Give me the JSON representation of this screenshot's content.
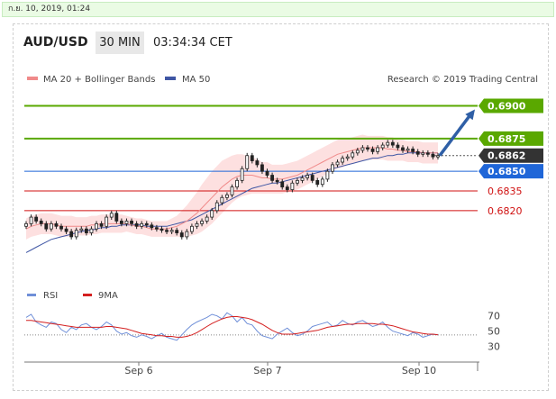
{
  "header": {
    "date": "ก.ย. 10, 2019, 01:24",
    "pair": "AUD/USD",
    "timeframe": "30 MIN",
    "time": "03:34:34 CET"
  },
  "legend": {
    "ma20": "MA 20 + Bollinger Bands",
    "ma50": "MA 50",
    "credit": "Research © 2019 Trading Central",
    "rsi": "RSI",
    "ma9": "9MA"
  },
  "colors": {
    "green": "#5aa800",
    "blue": "#1f66d8",
    "red": "#d01010",
    "current": "#333333",
    "ma50": "#3f56a4",
    "ma20": "#f08a8a",
    "band": "#fde0e0",
    "arrow": "#2f5fa6",
    "rsi": "#6f8fd8",
    "ma9": "#d42020"
  },
  "chart_data": [
    {
      "type": "line",
      "title": "",
      "ylim": [
        0.678,
        0.6912
      ],
      "x_ticks": [
        "Sep 6",
        "Sep 7",
        "Sep 10"
      ],
      "levels": [
        {
          "value": 0.69,
          "label": "0.6900",
          "kind": "resistance",
          "color": "#5aa800"
        },
        {
          "value": 0.6875,
          "label": "0.6875",
          "kind": "resistance",
          "color": "#5aa800"
        },
        {
          "value": 0.6862,
          "label": "0.6862",
          "kind": "current",
          "color": "#333333"
        },
        {
          "value": 0.685,
          "label": "0.6850",
          "kind": "pivot",
          "color": "#1f66d8"
        },
        {
          "value": 0.6835,
          "label": "0.6835",
          "kind": "support",
          "color": "#d01010"
        },
        {
          "value": 0.682,
          "label": "0.6820",
          "kind": "support",
          "color": "#d01010"
        }
      ],
      "close": [
        0.681,
        0.6815,
        0.6812,
        0.681,
        0.6806,
        0.681,
        0.6808,
        0.6806,
        0.6804,
        0.68,
        0.6805,
        0.6806,
        0.6803,
        0.6806,
        0.681,
        0.6808,
        0.6815,
        0.6818,
        0.6812,
        0.681,
        0.6812,
        0.681,
        0.6808,
        0.681,
        0.6809,
        0.6807,
        0.6806,
        0.6805,
        0.6804,
        0.6805,
        0.6803,
        0.68,
        0.6804,
        0.6808,
        0.681,
        0.6812,
        0.6815,
        0.682,
        0.6826,
        0.683,
        0.6832,
        0.6838,
        0.6843,
        0.6852,
        0.6862,
        0.6858,
        0.6855,
        0.685,
        0.6847,
        0.6843,
        0.6842,
        0.6838,
        0.6836,
        0.6841,
        0.6843,
        0.6845,
        0.6847,
        0.6843,
        0.684,
        0.6844,
        0.685,
        0.6855,
        0.6857,
        0.686,
        0.6861,
        0.6864,
        0.6866,
        0.6868,
        0.6867,
        0.6865,
        0.6868,
        0.687,
        0.6872,
        0.687,
        0.6868,
        0.6866,
        0.6867,
        0.6865,
        0.6863,
        0.6864,
        0.6863,
        0.6861,
        0.6862
      ],
      "ma50": [
        0.6788,
        0.679,
        0.6792,
        0.6794,
        0.6796,
        0.6798,
        0.6799,
        0.68,
        0.6801,
        0.6802,
        0.6803,
        0.6804,
        0.6805,
        0.6805,
        0.6806,
        0.6807,
        0.6807,
        0.6808,
        0.6808,
        0.6809,
        0.6809,
        0.6809,
        0.6809,
        0.6809,
        0.6808,
        0.6808,
        0.6808,
        0.6808,
        0.6808,
        0.6809,
        0.681,
        0.6811,
        0.6812,
        0.6813,
        0.6815,
        0.6817,
        0.6819,
        0.6821,
        0.6823,
        0.6825,
        0.6827,
        0.6829,
        0.6831,
        0.6833,
        0.6835,
        0.6837,
        0.6838,
        0.6839,
        0.684,
        0.6841,
        0.6841,
        0.6842,
        0.6843,
        0.6844,
        0.6845,
        0.6846,
        0.6847,
        0.6848,
        0.6849,
        0.685,
        0.6851,
        0.6852,
        0.6853,
        0.6854,
        0.6855,
        0.6856,
        0.6857,
        0.6858,
        0.6859,
        0.686,
        0.686,
        0.6861,
        0.6862,
        0.6862,
        0.6863,
        0.6863,
        0.6864,
        0.6864,
        0.6864,
        0.6864,
        0.6864,
        0.6864,
        0.6864
      ],
      "ma20": [
        0.6806,
        0.6808,
        0.6809,
        0.681,
        0.681,
        0.681,
        0.6809,
        0.6808,
        0.6808,
        0.6808,
        0.6808,
        0.6808,
        0.6808,
        0.6809,
        0.6809,
        0.681,
        0.681,
        0.681,
        0.681,
        0.681,
        0.681,
        0.6809,
        0.6808,
        0.6808,
        0.6807,
        0.6806,
        0.6806,
        0.6806,
        0.6806,
        0.6807,
        0.6808,
        0.681,
        0.6812,
        0.6815,
        0.6818,
        0.6822,
        0.6826,
        0.683,
        0.6834,
        0.6838,
        0.6841,
        0.6844,
        0.6846,
        0.6847,
        0.6847,
        0.6847,
        0.6846,
        0.6845,
        0.6845,
        0.6844,
        0.6844,
        0.6844,
        0.6845,
        0.6846,
        0.6847,
        0.6849,
        0.6851,
        0.6853,
        0.6855,
        0.6857,
        0.6859,
        0.6861,
        0.6863,
        0.6864,
        0.6865,
        0.6866,
        0.6867,
        0.6868,
        0.6868,
        0.6868,
        0.6868,
        0.6868,
        0.6867,
        0.6867,
        0.6866,
        0.6866,
        0.6865,
        0.6865,
        0.6865,
        0.6864,
        0.6864,
        0.6864,
        0.6864
      ],
      "band_width": [
        0.0008,
        0.0008,
        0.0008,
        0.0008,
        0.0008,
        0.0008,
        0.0008,
        0.0008,
        0.0008,
        0.0008,
        0.0007,
        0.0007,
        0.0007,
        0.0007,
        0.0007,
        0.0007,
        0.0007,
        0.0007,
        0.0007,
        0.0007,
        0.0006,
        0.0006,
        0.0006,
        0.0006,
        0.0006,
        0.0006,
        0.0006,
        0.0006,
        0.0006,
        0.0007,
        0.0008,
        0.001,
        0.0012,
        0.0014,
        0.0016,
        0.0018,
        0.0019,
        0.002,
        0.002,
        0.002,
        0.0019,
        0.0018,
        0.0017,
        0.0016,
        0.0015,
        0.0014,
        0.0013,
        0.0012,
        0.0012,
        0.0011,
        0.0011,
        0.0011,
        0.0011,
        0.0011,
        0.0011,
        0.0011,
        0.0011,
        0.0011,
        0.0011,
        0.0011,
        0.0011,
        0.0011,
        0.0011,
        0.0011,
        0.001,
        0.001,
        0.001,
        0.001,
        0.0009,
        0.0009,
        0.0009,
        0.0009,
        0.0009,
        0.0009,
        0.0008,
        0.0008,
        0.0008,
        0.0008,
        0.0008,
        0.0008,
        0.0008,
        0.0008,
        0.0008
      ]
    },
    {
      "type": "line",
      "title": "",
      "ylim": [
        20,
        85
      ],
      "y_ticks": [
        70,
        50,
        30
      ],
      "rsi": [
        68,
        72,
        62,
        58,
        55,
        62,
        60,
        52,
        48,
        55,
        52,
        58,
        60,
        55,
        52,
        56,
        62,
        58,
        50,
        46,
        48,
        44,
        42,
        45,
        43,
        40,
        44,
        47,
        42,
        40,
        38,
        45,
        52,
        58,
        62,
        65,
        68,
        72,
        70,
        66,
        74,
        70,
        62,
        68,
        60,
        58,
        50,
        44,
        42,
        40,
        46,
        50,
        54,
        48,
        44,
        46,
        50,
        56,
        58,
        60,
        62,
        56,
        58,
        64,
        60,
        58,
        62,
        64,
        60,
        56,
        58,
        62,
        55,
        50,
        48,
        46,
        44,
        48,
        46,
        42,
        44,
        46,
        45
      ],
      "ma9": [
        64,
        64,
        63,
        62,
        61,
        60,
        59,
        58,
        57,
        56,
        55,
        55,
        55,
        55,
        55,
        55,
        56,
        56,
        55,
        54,
        53,
        51,
        49,
        47,
        46,
        45,
        44,
        44,
        43,
        43,
        42,
        42,
        43,
        45,
        48,
        52,
        56,
        60,
        63,
        66,
        68,
        69,
        69,
        68,
        67,
        65,
        62,
        59,
        55,
        51,
        48,
        46,
        46,
        46,
        47,
        48,
        49,
        50,
        51,
        53,
        55,
        56,
        57,
        58,
        59,
        59,
        60,
        60,
        60,
        60,
        59,
        59,
        58,
        57,
        55,
        53,
        51,
        49,
        48,
        47,
        46,
        46,
        45
      ],
      "ref_line": 45
    }
  ]
}
